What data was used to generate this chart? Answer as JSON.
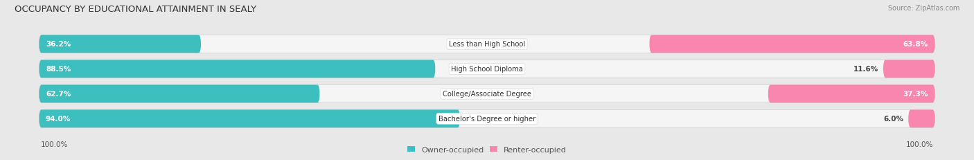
{
  "title": "OCCUPANCY BY EDUCATIONAL ATTAINMENT IN SEALY",
  "source": "Source: ZipAtlas.com",
  "categories": [
    "Less than High School",
    "High School Diploma",
    "College/Associate Degree",
    "Bachelor's Degree or higher"
  ],
  "owner_pct": [
    36.2,
    88.5,
    62.7,
    94.0
  ],
  "renter_pct": [
    63.8,
    11.6,
    37.3,
    6.0
  ],
  "owner_color": "#3dbfbf",
  "renter_color": "#f986ae",
  "bg_color": "#e8e8e8",
  "bar_bg_color": "#f5f5f5",
  "legend_owner": "Owner-occupied",
  "legend_renter": "Renter-occupied",
  "left_label": "100.0%",
  "right_label": "100.0%"
}
